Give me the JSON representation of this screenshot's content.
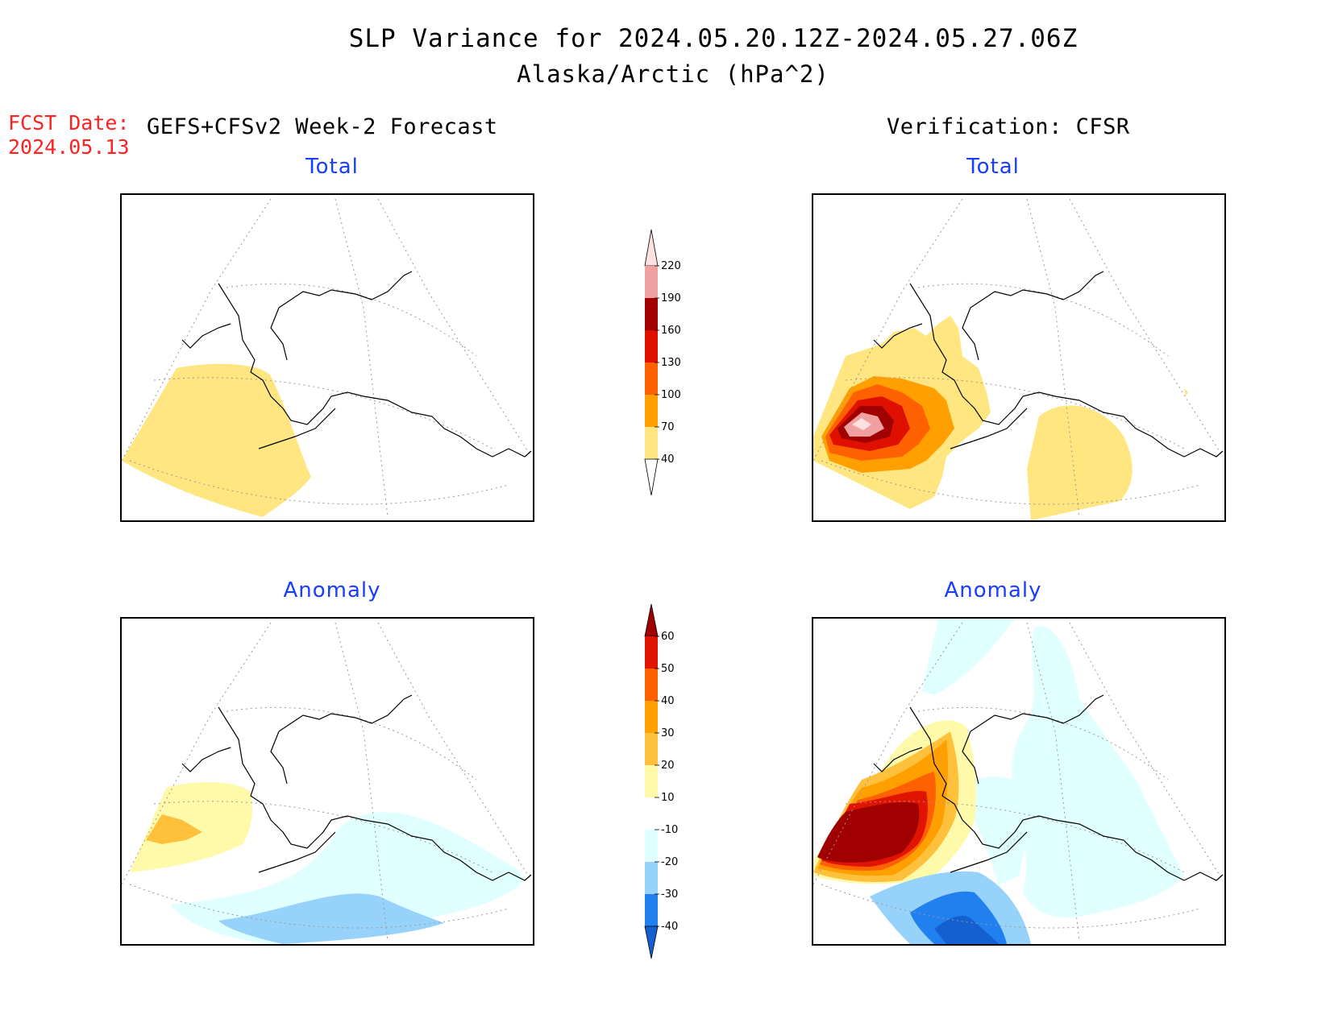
{
  "title": {
    "line1": "SLP Variance for 2024.05.20.12Z-2024.05.27.06Z",
    "line2": "Alaska/Arctic (hPa^2)"
  },
  "fcst_date": {
    "label": "FCST Date:",
    "value": "2024.05.13"
  },
  "columns": {
    "left": "GEFS+CFSv2 Week-2 Forecast",
    "right": "Verification: CFSR"
  },
  "panels": {
    "forecast_total": "Total",
    "verification_total": "Total",
    "forecast_anomaly": "Anomaly",
    "verification_anomaly": "Anomaly"
  },
  "colors": {
    "total": [
      "#ffffff",
      "#ffe680",
      "#ffa000",
      "#ff6000",
      "#e01000",
      "#a00000",
      "#f0a0a0",
      "#fde0e0"
    ],
    "anomaly": [
      "#1460d0",
      "#2080f0",
      "#96d2fa",
      "#e0ffff",
      "#ffffff",
      "#fffaaa",
      "#ffc03c",
      "#ffa000",
      "#ff6000",
      "#e01400",
      "#a00000"
    ]
  },
  "colorbars": {
    "total": {
      "levels": [
        "40",
        "70",
        "100",
        "130",
        "160",
        "190",
        "220"
      ]
    },
    "anomaly": {
      "levels": [
        "-40",
        "-30",
        "-20",
        "-10",
        "10",
        "20",
        "30",
        "40",
        "50",
        "60"
      ]
    }
  }
}
